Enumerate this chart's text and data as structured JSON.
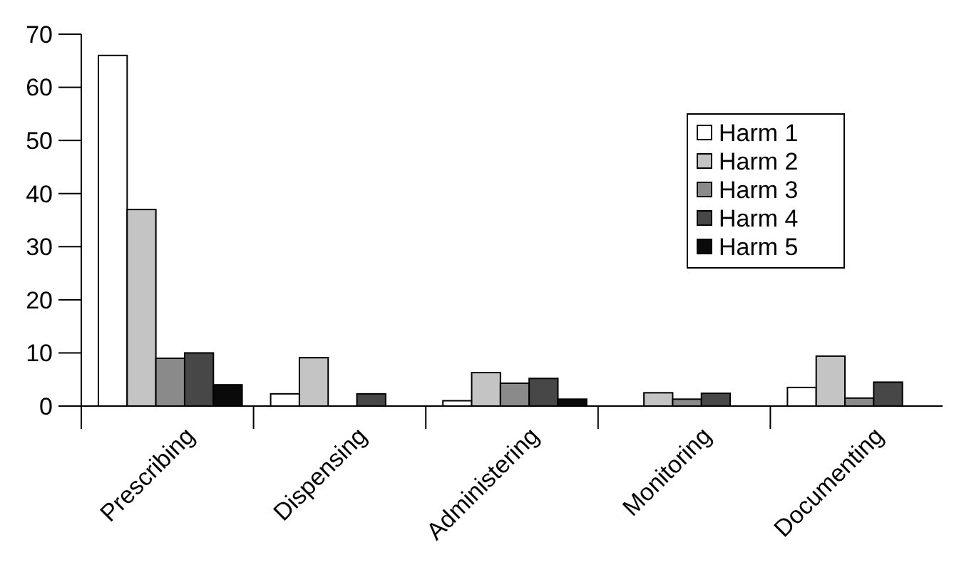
{
  "chart_data": {
    "type": "bar",
    "categories": [
      "Prescribing",
      "Dispensing",
      "Administering",
      "Monitoring",
      "Documenting"
    ],
    "series": [
      {
        "name": "Harm 1",
        "color": "#ffffff",
        "values": [
          66,
          2.3,
          1,
          0,
          3.5
        ]
      },
      {
        "name": "Harm 2",
        "color": "#c4c4c4",
        "values": [
          37,
          9.1,
          6.3,
          2.5,
          9.4
        ]
      },
      {
        "name": "Harm 3",
        "color": "#8a8a8a",
        "values": [
          9,
          0,
          4.3,
          1.3,
          1.5
        ]
      },
      {
        "name": "Harm 4",
        "color": "#474747",
        "values": [
          10,
          2.3,
          5.2,
          2.4,
          4.5
        ]
      },
      {
        "name": "Harm 5",
        "color": "#0a0a0a",
        "values": [
          4,
          0,
          1.3,
          0,
          0
        ]
      }
    ],
    "ylim": [
      0,
      70
    ],
    "yticks": [
      0,
      10,
      20,
      30,
      40,
      50,
      60,
      70
    ],
    "grid": false,
    "legend": "top right"
  }
}
